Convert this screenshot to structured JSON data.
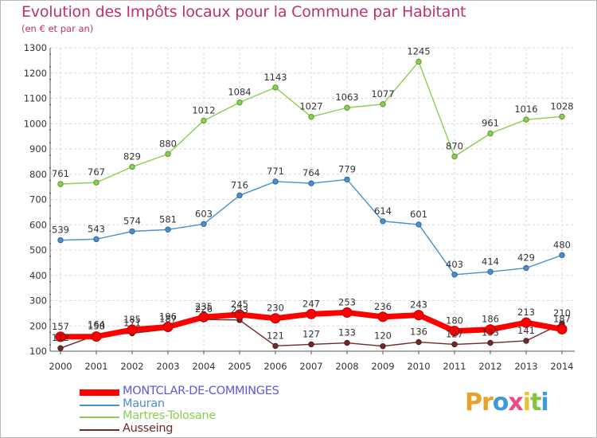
{
  "header": {
    "title": "Evolution des Impôts locaux pour la Commune par Habitant",
    "subtitle": "(en € et par an)"
  },
  "logo": {
    "letters": [
      "P",
      "r",
      "o",
      "x",
      "i",
      "t",
      "i"
    ],
    "colors": [
      "#e8a02a",
      "#e8a02a",
      "#3f9bd5",
      "#e84c8b",
      "#e8c030",
      "#85c23e",
      "#3f9bd5"
    ]
  },
  "chart_data": {
    "type": "line",
    "x": [
      "2000",
      "2001",
      "2002",
      "2003",
      "2004",
      "2005",
      "2006",
      "2007",
      "2008",
      "2009",
      "2010",
      "2011",
      "2012",
      "2013",
      "2014"
    ],
    "ylim": [
      100,
      1300
    ],
    "yticks": [
      "100",
      "200",
      "300",
      "400",
      "500",
      "600",
      "700",
      "800",
      "900",
      "1000",
      "1100",
      "1200",
      "1300"
    ],
    "grid": true,
    "legend_position": "bottom-left",
    "series": [
      {
        "name": "MONTCLAR-DE-COMMINGES",
        "color": "#ff0000",
        "values": [
          157,
          158,
          185,
          196,
          235,
          245,
          230,
          247,
          253,
          236,
          243,
          180,
          186,
          213,
          187
        ],
        "labels": [
          "157",
          "158",
          "185",
          "196",
          "235",
          "245",
          "230",
          "247",
          "253",
          "236",
          "243",
          "180",
          "186",
          "213",
          "187"
        ]
      },
      {
        "name": "Mauran",
        "color": "#4a8fcf",
        "values": [
          539,
          543,
          574,
          581,
          603,
          716,
          771,
          764,
          779,
          614,
          601,
          403,
          414,
          429,
          480
        ],
        "labels": [
          "539",
          "543",
          "574",
          "581",
          "603",
          "716",
          "771",
          "764",
          "779",
          "614",
          "601",
          "403",
          "414",
          "429",
          "480"
        ]
      },
      {
        "name": "Martres-Tolosane",
        "color": "#88d050",
        "values": [
          761,
          767,
          829,
          880,
          1012,
          1084,
          1143,
          1027,
          1063,
          1077,
          1245,
          870,
          961,
          1016,
          1028
        ],
        "labels": [
          "761",
          "767",
          "829",
          "880",
          "1012",
          "1084",
          "1143",
          "1027",
          "1063",
          "1077",
          "1245",
          "870",
          "961",
          "1016",
          "1028"
        ]
      },
      {
        "name": "Ausseing",
        "color": "#702828",
        "values": [
          112,
          164,
          171,
          187,
          226,
          223,
          121,
          127,
          133,
          120,
          136,
          127,
          133,
          141,
          210
        ],
        "labels": [
          "112",
          "164",
          "171",
          "187",
          "226",
          "223",
          "121",
          "127",
          "133",
          "120",
          "136",
          "127",
          "133",
          "141",
          "210"
        ]
      }
    ]
  }
}
